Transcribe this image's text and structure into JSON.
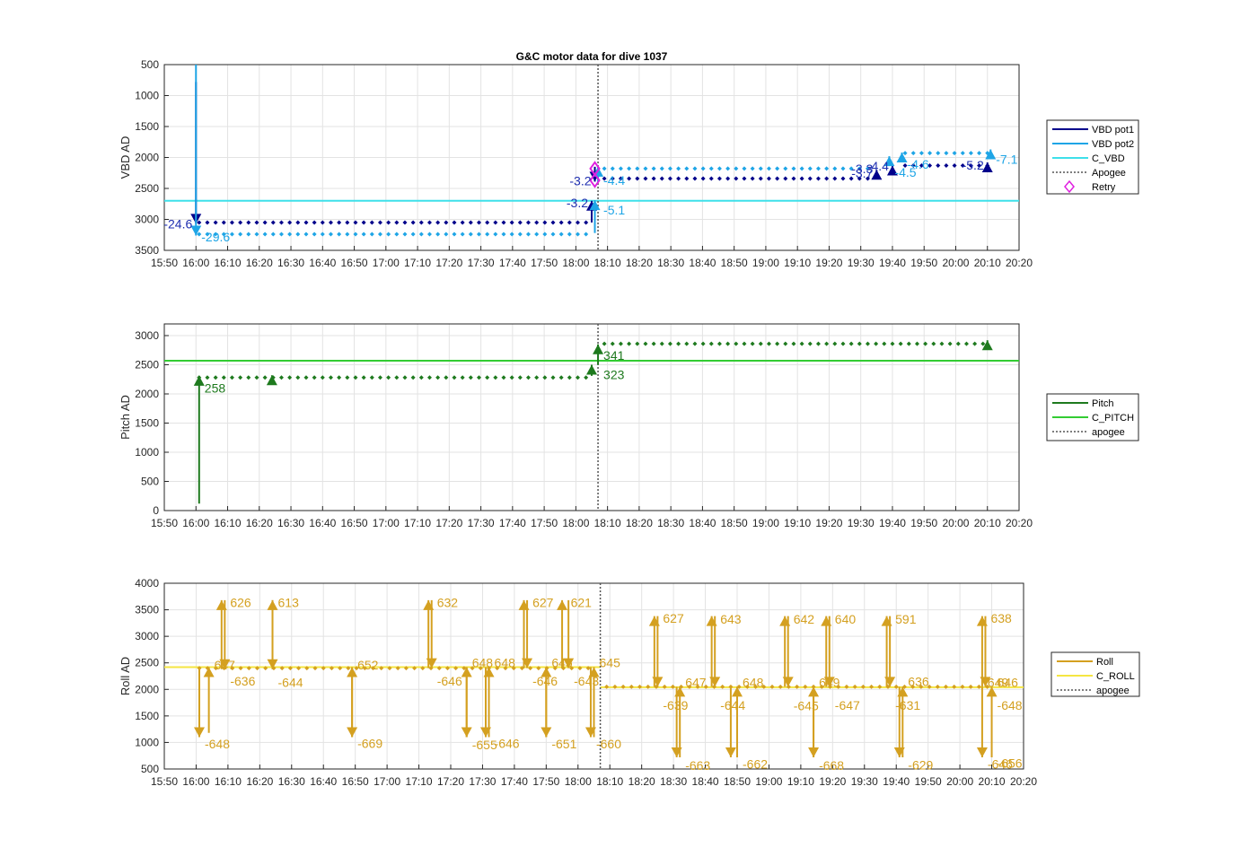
{
  "chart_data": [
    {
      "type": "line",
      "title": "G&C motor data for dive 1037",
      "ylabel": "VBD AD",
      "ylim": [
        500,
        3500
      ],
      "y_reversed": true,
      "yticks": [
        "500",
        "1000",
        "1500",
        "2000",
        "2500",
        "3000",
        "3500"
      ],
      "xlim": [
        "15:50",
        "20:20"
      ],
      "xticks": [
        "15:50",
        "16:00",
        "16:10",
        "16:20",
        "16:30",
        "16:40",
        "16:50",
        "17:00",
        "17:10",
        "17:20",
        "17:30",
        "17:40",
        "17:50",
        "18:00",
        "18:10",
        "18:20",
        "18:30",
        "18:40",
        "18:50",
        "19:00",
        "19:10",
        "19:20",
        "19:30",
        "19:40",
        "19:50",
        "20:00",
        "20:10",
        "20:20"
      ],
      "grid": true,
      "legend_position": "right",
      "apogee_time": "18:07",
      "series": [
        {
          "name": "VBD pot1",
          "color": "#00008B",
          "segments": [
            {
              "x": [
                "16:00",
                "16:00"
              ],
              "y": [
                780,
                3070
              ]
            },
            {
              "x": [
                "18:05",
                "18:05"
              ],
              "y": [
                3050,
                2700
              ]
            },
            {
              "x": [
                "18:06",
                "18:06"
              ],
              "y": [
                2150,
                2390
              ]
            },
            {
              "x": [
                "19:35",
                "19:35"
              ],
              "y": [
                2270,
                2200
              ]
            },
            {
              "x": [
                "19:40",
                "19:40"
              ],
              "y": [
                2190,
                2130
              ]
            },
            {
              "x": [
                "20:10",
                "20:10"
              ],
              "y": [
                2130,
                2080
              ]
            }
          ],
          "dots": {
            "y_before": 3050,
            "y_after": 2340,
            "y_late": 2130
          }
        },
        {
          "name": "VBD pot2",
          "color": "#1EA5E6",
          "segments": [
            {
              "x": [
                "16:00",
                "16:00"
              ],
              "y": [
                500,
                3260
              ]
            },
            {
              "x": [
                "18:06",
                "18:06"
              ],
              "y": [
                3220,
                2690
              ]
            },
            {
              "x": [
                "18:07",
                "18:07"
              ],
              "y": [
                2400,
                2150
              ]
            },
            {
              "x": [
                "19:39",
                "19:39"
              ],
              "y": [
                2100,
                1980
              ]
            },
            {
              "x": [
                "19:43",
                "19:43"
              ],
              "y": [
                1960,
                1920
              ]
            },
            {
              "x": [
                "20:11",
                "20:11"
              ],
              "y": [
                1920,
                1870
              ]
            }
          ],
          "dots": {
            "y_before": 3240,
            "y_after": 2180,
            "y_late": 1930
          }
        },
        {
          "name": "C_VBD",
          "color": "#3EE0EA",
          "constant": 2700
        },
        {
          "name": "Apogee",
          "color": "#555555",
          "style": "dotted"
        },
        {
          "name": "Retry",
          "color": "#E020E0",
          "marker": "diamond",
          "points": [
            {
              "x": "18:06",
              "y": 2180
            },
            {
              "x": "18:06",
              "y": 2370
            }
          ]
        }
      ],
      "annotations": [
        {
          "text": "-24.6",
          "x": "16:00",
          "y": 3070,
          "series": 0
        },
        {
          "text": "-29.6",
          "x": "16:00",
          "y": 3280,
          "series": 1
        },
        {
          "text": "-3.2",
          "x": "18:06",
          "y": 2380,
          "series": 0
        },
        {
          "text": "-3.2",
          "x": "18:05",
          "y": 2730,
          "series": 0
        },
        {
          "text": "-4.4",
          "x": "18:07",
          "y": 2370,
          "series": 1
        },
        {
          "text": "-5.1",
          "x": "18:07",
          "y": 2850,
          "series": 1
        },
        {
          "text": "-3.7",
          "x": "19:35",
          "y": 2250,
          "series": 0
        },
        {
          "text": "-3.3",
          "x": "19:35",
          "y": 2180,
          "series": 0
        },
        {
          "text": "-4.5",
          "x": "19:39",
          "y": 2240,
          "series": 1
        },
        {
          "text": "-4.4",
          "x": "19:40",
          "y": 2140,
          "series": 0
        },
        {
          "text": "-4.6",
          "x": "19:43",
          "y": 2110,
          "series": 1
        },
        {
          "text": "-5.2",
          "x": "20:10",
          "y": 2120,
          "series": 0
        },
        {
          "text": "-7.1",
          "x": "20:11",
          "y": 2030,
          "series": 1
        }
      ]
    },
    {
      "type": "line",
      "ylabel": "Pitch AD",
      "ylim": [
        0,
        3200
      ],
      "yticks": [
        "0",
        "500",
        "1000",
        "1500",
        "2000",
        "2500",
        "3000"
      ],
      "xlim": [
        "15:50",
        "20:20"
      ],
      "grid": true,
      "legend_position": "right",
      "apogee_time": "18:07",
      "series": [
        {
          "name": "Pitch",
          "color": "#1E7A1E",
          "segments": [
            {
              "x": [
                "16:01",
                "16:01"
              ],
              "y": [
                120,
                2310
              ]
            },
            {
              "x": [
                "16:24",
                "16:24"
              ],
              "y": [
                2300,
                2320
              ]
            },
            {
              "x": [
                "18:05",
                "18:05"
              ],
              "y": [
                2310,
                2500
              ]
            },
            {
              "x": [
                "18:07",
                "18:07"
              ],
              "y": [
                2500,
                2850
              ]
            },
            {
              "x": [
                "20:10",
                "20:10"
              ],
              "y": [
                2870,
                2920
              ]
            }
          ],
          "dots": {
            "y_before": 2280,
            "y_after": 2860
          }
        },
        {
          "name": "C_PITCH",
          "color": "#33CC33",
          "constant": 2570
        },
        {
          "name": "apogee",
          "color": "#555555",
          "style": "dotted"
        }
      ],
      "annotations": [
        {
          "text": "258",
          "x": "16:01",
          "y": 2100
        },
        {
          "text": "341",
          "x": "18:07",
          "y": 2660
        },
        {
          "text": "323",
          "x": "18:07",
          "y": 2330
        }
      ]
    },
    {
      "type": "line",
      "ylabel": "Roll AD",
      "ylim": [
        500,
        4000
      ],
      "yticks": [
        "500",
        "1000",
        "1500",
        "2000",
        "2500",
        "3000",
        "3500",
        "4000"
      ],
      "xlim": [
        "15:50",
        "20:20"
      ],
      "grid": true,
      "legend_position": "right",
      "apogee_time": "18:07",
      "series": [
        {
          "name": "Roll",
          "color": "#D4A020",
          "arrows": [
            {
              "x": "16:01",
              "from": 2420,
              "to": 1100
            },
            {
              "x": "16:04",
              "from": 1180,
              "to": 2420
            },
            {
              "x": "16:08",
              "from": 2380,
              "to": 3680
            },
            {
              "x": "16:09",
              "from": 3680,
              "to": 2380
            },
            {
              "x": "16:24",
              "from": 2380,
              "to": 3680
            },
            {
              "x": "16:24",
              "from": 3680,
              "to": 2380
            },
            {
              "x": "16:49",
              "from": 2420,
              "to": 1100
            },
            {
              "x": "16:49",
              "from": 1100,
              "to": 2420
            },
            {
              "x": "17:13",
              "from": 2400,
              "to": 3680
            },
            {
              "x": "17:14",
              "from": 3680,
              "to": 2400
            },
            {
              "x": "17:25",
              "from": 2420,
              "to": 1100
            },
            {
              "x": "17:25",
              "from": 1100,
              "to": 2420
            },
            {
              "x": "17:31",
              "from": 2420,
              "to": 1100
            },
            {
              "x": "17:32",
              "from": 1100,
              "to": 2420
            },
            {
              "x": "17:43",
              "from": 2400,
              "to": 3680
            },
            {
              "x": "17:44",
              "from": 3680,
              "to": 2400
            },
            {
              "x": "17:50",
              "from": 2420,
              "to": 1100
            },
            {
              "x": "17:50",
              "from": 1100,
              "to": 2420
            },
            {
              "x": "17:55",
              "from": 2400,
              "to": 3680
            },
            {
              "x": "17:57",
              "from": 3680,
              "to": 2400
            },
            {
              "x": "18:04",
              "from": 2420,
              "to": 1100
            },
            {
              "x": "18:05",
              "from": 1100,
              "to": 2420
            },
            {
              "x": "18:24",
              "from": 2050,
              "to": 3380
            },
            {
              "x": "18:25",
              "from": 3380,
              "to": 2050
            },
            {
              "x": "18:31",
              "from": 2050,
              "to": 720
            },
            {
              "x": "18:32",
              "from": 720,
              "to": 2050
            },
            {
              "x": "18:42",
              "from": 2050,
              "to": 3380
            },
            {
              "x": "18:43",
              "from": 3380,
              "to": 2050
            },
            {
              "x": "18:48",
              "from": 2050,
              "to": 720
            },
            {
              "x": "18:50",
              "from": 720,
              "to": 2050
            },
            {
              "x": "19:05",
              "from": 2050,
              "to": 3380
            },
            {
              "x": "19:06",
              "from": 3380,
              "to": 2050
            },
            {
              "x": "19:14",
              "from": 2050,
              "to": 720
            },
            {
              "x": "19:14",
              "from": 720,
              "to": 2050
            },
            {
              "x": "19:18",
              "from": 2050,
              "to": 3380
            },
            {
              "x": "19:19",
              "from": 3380,
              "to": 2050
            },
            {
              "x": "19:37",
              "from": 2050,
              "to": 3380
            },
            {
              "x": "19:38",
              "from": 3380,
              "to": 2050
            },
            {
              "x": "19:41",
              "from": 2050,
              "to": 720
            },
            {
              "x": "19:42",
              "from": 720,
              "to": 2050
            },
            {
              "x": "20:07",
              "from": 2050,
              "to": 3380
            },
            {
              "x": "20:08",
              "from": 3380,
              "to": 2050
            },
            {
              "x": "20:07",
              "from": 2050,
              "to": 720
            },
            {
              "x": "20:10",
              "from": 720,
              "to": 2050
            }
          ],
          "dots": {
            "y_before": 2400,
            "y_after": 2050
          }
        },
        {
          "name": "C_ROLL",
          "color": "#F5E642",
          "constant_before": 2420,
          "constant_after": 2040
        },
        {
          "name": "apogee",
          "color": "#555555",
          "style": "dotted"
        }
      ],
      "annotations": [
        {
          "text": "626",
          "x": "16:09",
          "y": 3640
        },
        {
          "text": "613",
          "x": "16:24",
          "y": 3640
        },
        {
          "text": "632",
          "x": "17:14",
          "y": 3640
        },
        {
          "text": "627",
          "x": "17:44",
          "y": 3640
        },
        {
          "text": "621",
          "x": "17:56",
          "y": 3640
        },
        {
          "text": "647",
          "x": "16:04",
          "y": 2460
        },
        {
          "text": "-636",
          "x": "16:09",
          "y": 2160
        },
        {
          "text": "-644",
          "x": "16:24",
          "y": 2130
        },
        {
          "text": "652",
          "x": "16:49",
          "y": 2460
        },
        {
          "text": "-646",
          "x": "17:14",
          "y": 2160
        },
        {
          "text": "648",
          "x": "17:25",
          "y": 2500
        },
        {
          "text": "648",
          "x": "17:32",
          "y": 2500
        },
        {
          "text": "-646",
          "x": "17:44",
          "y": 2160
        },
        {
          "text": "645",
          "x": "17:50",
          "y": 2500
        },
        {
          "text": "-643",
          "x": "17:57",
          "y": 2160
        },
        {
          "text": "645",
          "x": "18:05",
          "y": 2500
        },
        {
          "text": "-648",
          "x": "16:01",
          "y": 970
        },
        {
          "text": "-669",
          "x": "16:49",
          "y": 980
        },
        {
          "text": "-655",
          "x": "17:25",
          "y": 960
        },
        {
          "text": "-646",
          "x": "17:32",
          "y": 980
        },
        {
          "text": "-651",
          "x": "17:50",
          "y": 970
        },
        {
          "text": "-660",
          "x": "18:04",
          "y": 970
        },
        {
          "text": "627",
          "x": "18:25",
          "y": 3340
        },
        {
          "text": "643",
          "x": "18:43",
          "y": 3320
        },
        {
          "text": "642",
          "x": "19:06",
          "y": 3320
        },
        {
          "text": "640",
          "x": "19:19",
          "y": 3320
        },
        {
          "text": "591",
          "x": "19:38",
          "y": 3320
        },
        {
          "text": "638",
          "x": "20:08",
          "y": 3340
        },
        {
          "text": "647",
          "x": "18:32",
          "y": 2130
        },
        {
          "text": "648",
          "x": "18:50",
          "y": 2130
        },
        {
          "text": "649",
          "x": "19:14",
          "y": 2130
        },
        {
          "text": "636",
          "x": "19:42",
          "y": 2150
        },
        {
          "text": "649",
          "x": "20:07",
          "y": 2130
        },
        {
          "text": "646",
          "x": "20:10",
          "y": 2130
        },
        {
          "text": "-639",
          "x": "18:25",
          "y": 1700
        },
        {
          "text": "-644",
          "x": "18:43",
          "y": 1700
        },
        {
          "text": "-645",
          "x": "19:06",
          "y": 1690
        },
        {
          "text": "-647",
          "x": "19:19",
          "y": 1700
        },
        {
          "text": "-631",
          "x": "19:38",
          "y": 1700
        },
        {
          "text": "-648",
          "x": "20:10",
          "y": 1700
        },
        {
          "text": "-663",
          "x": "18:32",
          "y": 570
        },
        {
          "text": "-662",
          "x": "18:50",
          "y": 590
        },
        {
          "text": "-668",
          "x": "19:14",
          "y": 570
        },
        {
          "text": "-629",
          "x": "19:42",
          "y": 580
        },
        {
          "text": "-646",
          "x": "20:07",
          "y": 590
        },
        {
          "text": "-656",
          "x": "20:10",
          "y": 610
        }
      ]
    }
  ]
}
